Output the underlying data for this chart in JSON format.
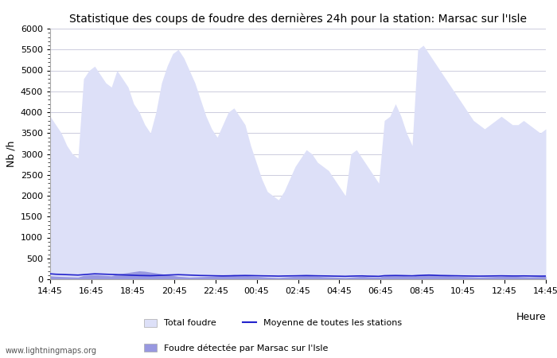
{
  "title": "Statistique des coups de foudre des dernières 24h pour la station: Marsac sur l'Isle",
  "ylabel": "Nb /h",
  "xlabel": "Heure",
  "watermark": "www.lightningmaps.org",
  "xlabels": [
    "14:45",
    "16:45",
    "18:45",
    "20:45",
    "22:45",
    "00:45",
    "02:45",
    "04:45",
    "06:45",
    "08:45",
    "10:45",
    "12:45",
    "14:45"
  ],
  "ylim": [
    0,
    6000
  ],
  "yticks": [
    0,
    500,
    1000,
    1500,
    2000,
    2500,
    3000,
    3500,
    4000,
    4500,
    5000,
    5500,
    6000
  ],
  "total_foudre": [
    3900,
    3700,
    3500,
    3200,
    3000,
    2900,
    4800,
    5000,
    5100,
    4900,
    4700,
    4600,
    5000,
    4800,
    4600,
    4200,
    4000,
    3700,
    3500,
    4000,
    4700,
    5100,
    5400,
    5500,
    5300,
    5000,
    4700,
    4300,
    3900,
    3600,
    3400,
    3700,
    4000,
    4100,
    3900,
    3700,
    3200,
    2800,
    2400,
    2100,
    2000,
    1900,
    2100,
    2400,
    2700,
    2900,
    3100,
    3000,
    2800,
    2700,
    2600,
    2400,
    2200,
    2000,
    3000,
    3100,
    2900,
    2700,
    2500,
    2300,
    3800,
    3900,
    4200,
    3900,
    3500,
    3200,
    5500,
    5600,
    5400,
    5200,
    5000,
    4800,
    4600,
    4400,
    4200,
    4000,
    3800,
    3700,
    3600,
    3700,
    3800,
    3900,
    3800,
    3700,
    3700,
    3800,
    3700,
    3600,
    3500,
    3600
  ],
  "foudre_locale": [
    80,
    70,
    65,
    60,
    55,
    50,
    90,
    100,
    110,
    100,
    90,
    80,
    120,
    140,
    160,
    180,
    200,
    190,
    170,
    150,
    130,
    110,
    90,
    70,
    60,
    50,
    55,
    60,
    65,
    70,
    80,
    90,
    100,
    110,
    100,
    90,
    80,
    70,
    60,
    50,
    45,
    40,
    50,
    60,
    70,
    80,
    90,
    80,
    70,
    60,
    55,
    50,
    45,
    40,
    50,
    60,
    70,
    60,
    55,
    50,
    80,
    90,
    100,
    90,
    80,
    70,
    100,
    110,
    120,
    110,
    100,
    90,
    80,
    70,
    65,
    60,
    55,
    50,
    55,
    60,
    65,
    70,
    75,
    70,
    65,
    60,
    55,
    60,
    65,
    70
  ],
  "moyenne": [
    130,
    120,
    115,
    110,
    105,
    100,
    110,
    120,
    130,
    125,
    120,
    115,
    110,
    105,
    100,
    95,
    90,
    88,
    85,
    90,
    95,
    100,
    105,
    110,
    105,
    100,
    95,
    90,
    88,
    85,
    82,
    80,
    82,
    85,
    88,
    90,
    88,
    85,
    82,
    80,
    78,
    75,
    78,
    80,
    82,
    85,
    88,
    85,
    82,
    80,
    78,
    75,
    73,
    70,
    75,
    78,
    80,
    75,
    73,
    70,
    85,
    88,
    90,
    88,
    85,
    82,
    90,
    95,
    100,
    95,
    90,
    88,
    85,
    83,
    80,
    78,
    76,
    75,
    76,
    78,
    80,
    82,
    80,
    78,
    78,
    80,
    78,
    76,
    75,
    76
  ],
  "color_total": "#dde0f8",
  "color_local": "#9898e0",
  "color_mean": "#2222cc",
  "bg_color": "#ffffff",
  "plot_bg": "#ffffff",
  "grid_color": "#ccccdd",
  "title_fontsize": 10,
  "legend_total": "Total foudre",
  "legend_mean": "Moyenne de toutes les stations",
  "legend_local": "Foudre détectée par Marsac sur l'Isle"
}
